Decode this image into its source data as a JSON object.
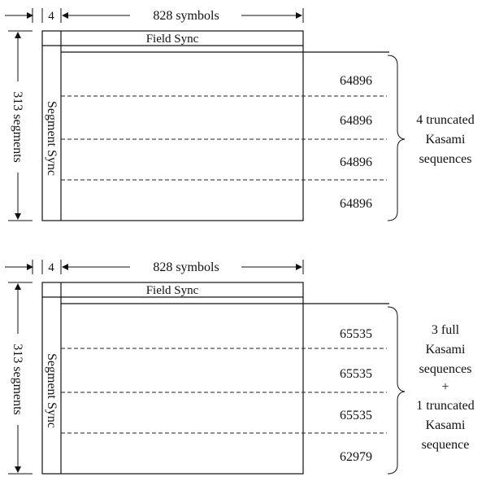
{
  "panels": [
    {
      "width_label_small": "4",
      "width_label_large": "828 symbols",
      "height_label": "313 segments",
      "field_sync": "Field Sync",
      "segment_sync": "Segment Sync",
      "values": [
        "64896",
        "64896",
        "64896",
        "64896"
      ],
      "brace_lines": [
        "4 truncated",
        "Kasami",
        "sequences"
      ]
    },
    {
      "width_label_small": "4",
      "width_label_large": "828 symbols",
      "height_label": "313 segments",
      "field_sync": "Field Sync",
      "segment_sync": "Segment Sync",
      "values": [
        "65535",
        "65535",
        "65535",
        "62979"
      ],
      "brace_lines": [
        "3 full",
        "Kasami",
        "sequences",
        "+",
        "1 truncated",
        "Kasami",
        "sequence"
      ]
    }
  ]
}
